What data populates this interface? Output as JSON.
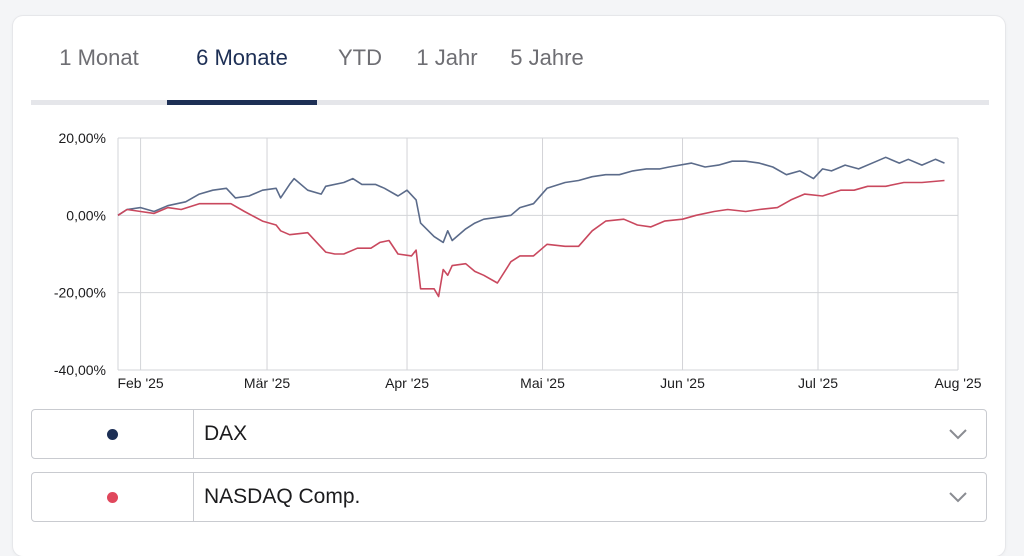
{
  "tabs": [
    {
      "label": "1 Monat",
      "active": false
    },
    {
      "label": "6 Monate",
      "active": true
    },
    {
      "label": "YTD",
      "active": false
    },
    {
      "label": "1 Jahr",
      "active": false
    },
    {
      "label": "5 Jahre",
      "active": false
    }
  ],
  "selectors": [
    {
      "name": "DAX",
      "color": "#1d2f55"
    },
    {
      "name": "NASDAQ Comp.",
      "color": "#e0475c"
    }
  ],
  "chart_data": {
    "type": "line",
    "title": "",
    "xlabel": "",
    "ylabel": "",
    "x_ticks": [
      "Feb '25",
      "Mär '25",
      "Apr '25",
      "Mai '25",
      "Jun '25",
      "Jul '25",
      "Aug '25"
    ],
    "x_tick_dates": [
      "2025-02-01",
      "2025-03-01",
      "2025-04-01",
      "2025-05-01",
      "2025-06-01",
      "2025-07-01",
      "2025-08-01"
    ],
    "y_ticks": [
      "20,00%",
      "0,00%",
      "-20,00%",
      "-40,00%"
    ],
    "y_tick_values": [
      20,
      0,
      -20,
      -40
    ],
    "ylim": [
      -40,
      20
    ],
    "xlim": [
      "2025-01-27",
      "2025-08-01"
    ],
    "grid": true,
    "series": [
      {
        "name": "DAX",
        "color": "#5b6b8a",
        "points": [
          [
            "2025-01-27",
            0
          ],
          [
            "2025-01-29",
            1.5
          ],
          [
            "2025-02-01",
            2
          ],
          [
            "2025-02-04",
            1
          ],
          [
            "2025-02-07",
            2.5
          ],
          [
            "2025-02-11",
            3.5
          ],
          [
            "2025-02-14",
            5.5
          ],
          [
            "2025-02-17",
            6.5
          ],
          [
            "2025-02-20",
            7
          ],
          [
            "2025-02-22",
            4.5
          ],
          [
            "2025-02-25",
            5
          ],
          [
            "2025-02-28",
            6.5
          ],
          [
            "2025-03-03",
            7
          ],
          [
            "2025-03-04",
            4.5
          ],
          [
            "2025-03-06",
            8
          ],
          [
            "2025-03-07",
            9.5
          ],
          [
            "2025-03-10",
            6.5
          ],
          [
            "2025-03-13",
            5.5
          ],
          [
            "2025-03-14",
            7.5
          ],
          [
            "2025-03-18",
            8.5
          ],
          [
            "2025-03-20",
            9.5
          ],
          [
            "2025-03-22",
            8
          ],
          [
            "2025-03-25",
            8
          ],
          [
            "2025-03-27",
            7
          ],
          [
            "2025-03-30",
            5
          ],
          [
            "2025-04-01",
            6.5
          ],
          [
            "2025-04-03",
            4
          ],
          [
            "2025-04-04",
            -2
          ],
          [
            "2025-04-07",
            -5.5
          ],
          [
            "2025-04-09",
            -7
          ],
          [
            "2025-04-10",
            -4
          ],
          [
            "2025-04-11",
            -6.5
          ],
          [
            "2025-04-14",
            -3.5
          ],
          [
            "2025-04-16",
            -2
          ],
          [
            "2025-04-18",
            -1
          ],
          [
            "2025-04-21",
            -0.5
          ],
          [
            "2025-04-24",
            0
          ],
          [
            "2025-04-26",
            2
          ],
          [
            "2025-04-29",
            3
          ],
          [
            "2025-05-02",
            7
          ],
          [
            "2025-05-06",
            8.5
          ],
          [
            "2025-05-09",
            9
          ],
          [
            "2025-05-12",
            10
          ],
          [
            "2025-05-15",
            10.5
          ],
          [
            "2025-05-18",
            10.5
          ],
          [
            "2025-05-21",
            11.5
          ],
          [
            "2025-05-24",
            12
          ],
          [
            "2025-05-27",
            12
          ],
          [
            "2025-05-29",
            12.5
          ],
          [
            "2025-06-03",
            13.5
          ],
          [
            "2025-06-06",
            12.5
          ],
          [
            "2025-06-09",
            13
          ],
          [
            "2025-06-12",
            14
          ],
          [
            "2025-06-15",
            14
          ],
          [
            "2025-06-18",
            13.5
          ],
          [
            "2025-06-21",
            12.5
          ],
          [
            "2025-06-24",
            10.5
          ],
          [
            "2025-06-27",
            11.5
          ],
          [
            "2025-06-30",
            9.5
          ],
          [
            "2025-07-02",
            12
          ],
          [
            "2025-07-04",
            11.5
          ],
          [
            "2025-07-07",
            13
          ],
          [
            "2025-07-10",
            12
          ],
          [
            "2025-07-14",
            14
          ],
          [
            "2025-07-16",
            15
          ],
          [
            "2025-07-19",
            13.5
          ],
          [
            "2025-07-21",
            14.5
          ],
          [
            "2025-07-24",
            13
          ],
          [
            "2025-07-27",
            14.5
          ],
          [
            "2025-07-29",
            13.5
          ]
        ]
      },
      {
        "name": "NASDAQ Comp.",
        "color": "#c9485e",
        "points": [
          [
            "2025-01-27",
            0
          ],
          [
            "2025-01-29",
            1.5
          ],
          [
            "2025-02-01",
            1
          ],
          [
            "2025-02-04",
            0.5
          ],
          [
            "2025-02-07",
            2
          ],
          [
            "2025-02-10",
            1.5
          ],
          [
            "2025-02-14",
            3
          ],
          [
            "2025-02-18",
            3
          ],
          [
            "2025-02-21",
            3
          ],
          [
            "2025-02-24",
            1
          ],
          [
            "2025-02-28",
            -1.5
          ],
          [
            "2025-03-03",
            -2.5
          ],
          [
            "2025-03-04",
            -4
          ],
          [
            "2025-03-06",
            -5
          ],
          [
            "2025-03-10",
            -4.5
          ],
          [
            "2025-03-12",
            -7
          ],
          [
            "2025-03-14",
            -9.5
          ],
          [
            "2025-03-16",
            -10
          ],
          [
            "2025-03-18",
            -10
          ],
          [
            "2025-03-21",
            -8.5
          ],
          [
            "2025-03-24",
            -8.5
          ],
          [
            "2025-03-26",
            -7
          ],
          [
            "2025-03-28",
            -6.5
          ],
          [
            "2025-03-30",
            -10
          ],
          [
            "2025-04-02",
            -10.5
          ],
          [
            "2025-04-03",
            -9
          ],
          [
            "2025-04-04",
            -19
          ],
          [
            "2025-04-07",
            -19
          ],
          [
            "2025-04-08",
            -21
          ],
          [
            "2025-04-09",
            -14
          ],
          [
            "2025-04-10",
            -15.5
          ],
          [
            "2025-04-11",
            -13
          ],
          [
            "2025-04-14",
            -12.5
          ],
          [
            "2025-04-16",
            -14.5
          ],
          [
            "2025-04-18",
            -15.5
          ],
          [
            "2025-04-21",
            -17.5
          ],
          [
            "2025-04-24",
            -12
          ],
          [
            "2025-04-26",
            -10.5
          ],
          [
            "2025-04-29",
            -10.5
          ],
          [
            "2025-05-02",
            -7.5
          ],
          [
            "2025-05-06",
            -8
          ],
          [
            "2025-05-09",
            -8
          ],
          [
            "2025-05-12",
            -4
          ],
          [
            "2025-05-15",
            -1.5
          ],
          [
            "2025-05-19",
            -1
          ],
          [
            "2025-05-22",
            -2.5
          ],
          [
            "2025-05-25",
            -3
          ],
          [
            "2025-05-28",
            -1.5
          ],
          [
            "2025-06-01",
            -1
          ],
          [
            "2025-06-04",
            0
          ],
          [
            "2025-06-08",
            1
          ],
          [
            "2025-06-11",
            1.5
          ],
          [
            "2025-06-15",
            1
          ],
          [
            "2025-06-18",
            1.5
          ],
          [
            "2025-06-22",
            2
          ],
          [
            "2025-06-25",
            4
          ],
          [
            "2025-06-28",
            5.5
          ],
          [
            "2025-07-02",
            5
          ],
          [
            "2025-07-06",
            6.5
          ],
          [
            "2025-07-09",
            6.5
          ],
          [
            "2025-07-12",
            7.5
          ],
          [
            "2025-07-16",
            7.5
          ],
          [
            "2025-07-20",
            8.5
          ],
          [
            "2025-07-24",
            8.5
          ],
          [
            "2025-07-29",
            9
          ]
        ]
      }
    ]
  }
}
